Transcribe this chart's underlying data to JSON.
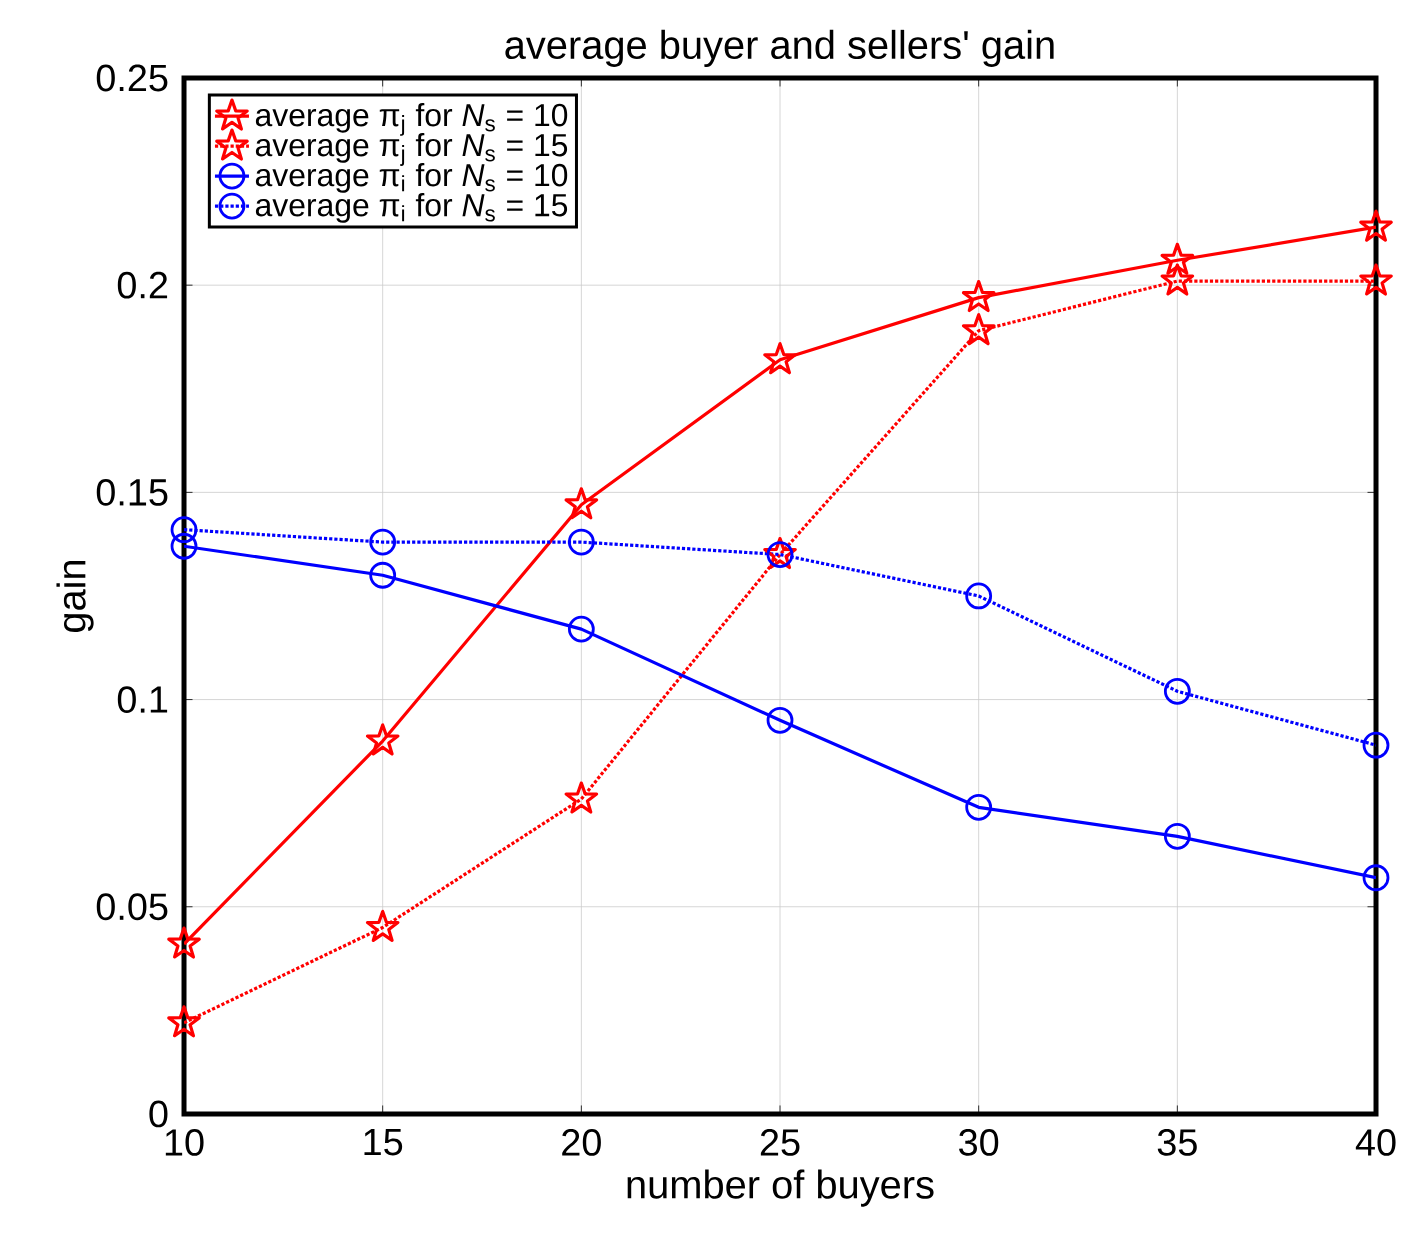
{
  "chart_data": {
    "type": "line",
    "title": "average buyer and sellers' gain",
    "xlabel": "number of buyers",
    "ylabel": "gain",
    "x": [
      10,
      15,
      20,
      25,
      30,
      35,
      40
    ],
    "series": [
      {
        "name": "average π$_{j}$ for *N*$_{s}$ = 10",
        "color": "#ff0000",
        "marker": "star",
        "line_style": "solid",
        "values": [
          0.041,
          0.09,
          0.147,
          0.182,
          0.197,
          0.206,
          0.214
        ]
      },
      {
        "name": "average π$_{j}$ for *N*$_{s}$ = 15",
        "color": "#ff0000",
        "marker": "star",
        "line_style": "dotted",
        "values": [
          0.022,
          0.045,
          0.076,
          0.135,
          0.189,
          0.201,
          0.201
        ]
      },
      {
        "name": "average π$_{i}$ for *N*$_{s}$ = 10",
        "color": "#0000ff",
        "marker": "circle",
        "line_style": "solid",
        "values": [
          0.137,
          0.13,
          0.117,
          0.095,
          0.074,
          0.067,
          0.057
        ]
      },
      {
        "name": "average π$_{i}$ for *N*$_{s}$ = 15",
        "color": "#0000ff",
        "marker": "circle",
        "line_style": "dotted",
        "values": [
          0.141,
          0.138,
          0.138,
          0.135,
          0.125,
          0.102,
          0.089
        ]
      }
    ],
    "xlim": [
      10,
      40
    ],
    "ylim": [
      0,
      0.25
    ],
    "xticks": [
      10,
      15,
      20,
      25,
      30,
      35,
      40
    ],
    "yticks": [
      0,
      0.05,
      0.1,
      0.15,
      0.2,
      0.25
    ],
    "grid": true,
    "legend": "top left"
  }
}
